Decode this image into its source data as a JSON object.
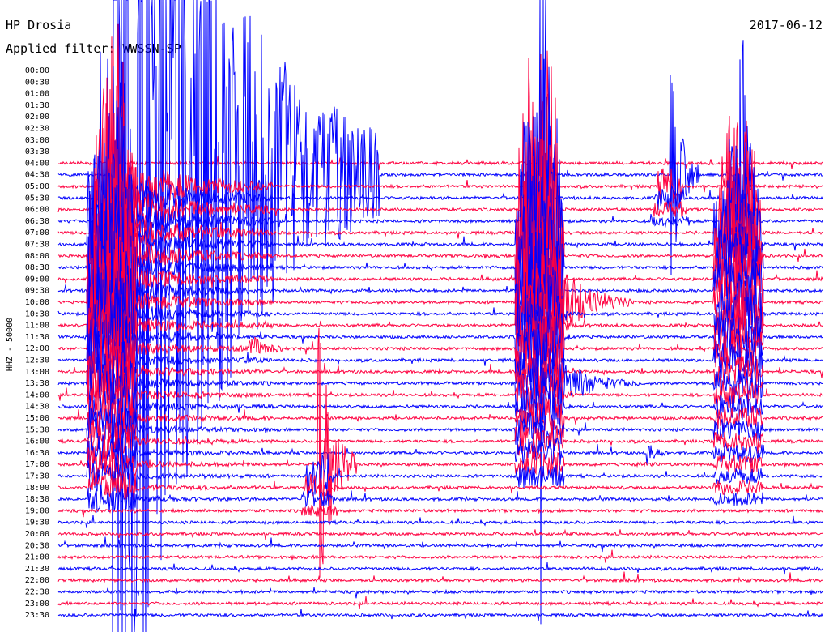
{
  "header": {
    "station": "HP Drosia",
    "date": "2017-06-12",
    "filter": "Applied filter: WWSSN-SP"
  },
  "chart_data": {
    "type": "line",
    "title": "HP Drosia",
    "subtitle": "Applied filter: WWSSN-SP",
    "ylabel": "HHZ - 50000",
    "date": "2017-06-12",
    "colors": [
      "#ff0040",
      "#0000ff"
    ],
    "start_row": 8,
    "tick_labels": [
      "00:00",
      "00:30",
      "01:00",
      "01:30",
      "02:00",
      "02:30",
      "03:00",
      "03:30",
      "04:00",
      "04:30",
      "05:00",
      "05:30",
      "06:00",
      "06:30",
      "07:00",
      "07:30",
      "08:00",
      "08:30",
      "09:00",
      "09:30",
      "10:00",
      "10:30",
      "11:00",
      "11:30",
      "12:00",
      "12:30",
      "13:00",
      "13:30",
      "14:00",
      "14:30",
      "15:00",
      "15:30",
      "16:00",
      "16:30",
      "17:00",
      "17:30",
      "18:00",
      "18:30",
      "19:00",
      "19:30",
      "20:00",
      "20:30",
      "21:00",
      "21:30",
      "22:00",
      "22:30",
      "23:00",
      "23:30"
    ],
    "events": [
      {
        "x": 0.07,
        "row": 9,
        "amp": 900,
        "dur": 0.35,
        "decay_rows": 28
      },
      {
        "x": 0.25,
        "row": 24,
        "amp": 20,
        "dur": 0.05,
        "decay_rows": 2
      },
      {
        "x": 0.34,
        "row": 34,
        "amp": 180,
        "dur": 0.05,
        "decay_rows": 4
      },
      {
        "x": 0.63,
        "row": 9,
        "amp": 800,
        "dur": 0.02,
        "decay_rows": 26
      },
      {
        "x": 0.65,
        "row": 20,
        "amp": 60,
        "dur": 0.1,
        "decay_rows": 3
      },
      {
        "x": 0.66,
        "row": 27,
        "amp": 30,
        "dur": 0.1,
        "decay_rows": 2
      },
      {
        "x": 0.77,
        "row": 33,
        "amp": 14,
        "dur": 0.03,
        "decay_rows": 1
      },
      {
        "x": 0.8,
        "row": 9,
        "amp": 150,
        "dur": 0.04,
        "decay_rows": 4
      },
      {
        "x": 0.89,
        "row": 9,
        "amp": 400,
        "dur": 0.02,
        "decay_rows": 28
      }
    ]
  }
}
